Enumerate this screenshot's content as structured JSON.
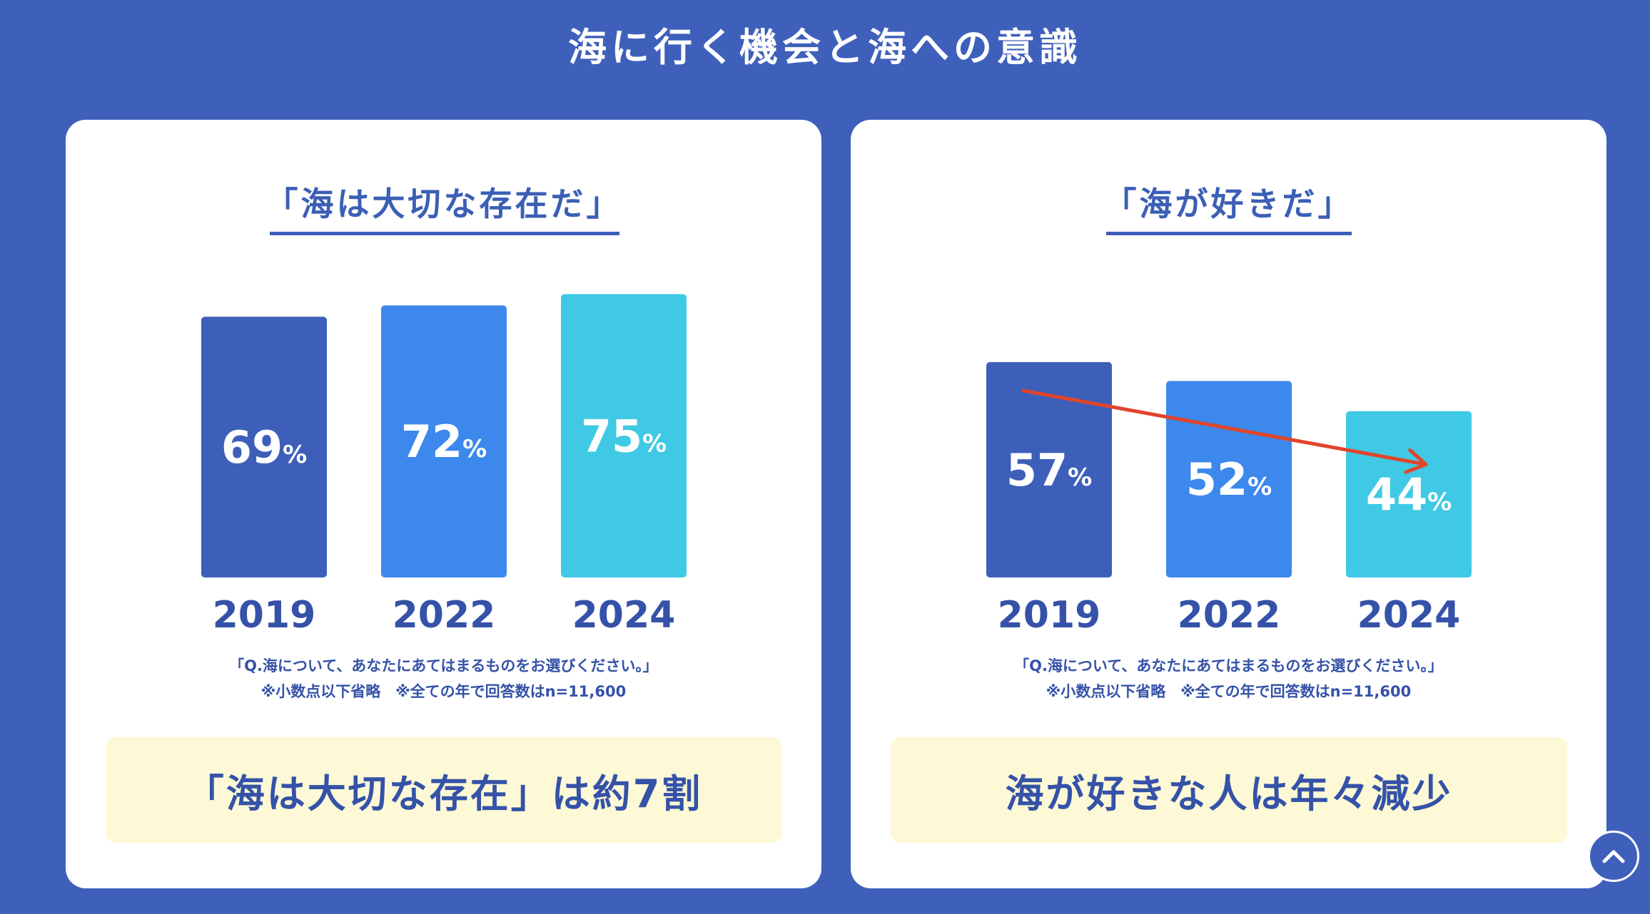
{
  "page_title": "海に行く機会と海への意識",
  "colors": {
    "year2019": "#3d5fba",
    "year2022": "#3d88ec",
    "year2024": "#40c9e4",
    "trend_arrow": "#e0452b",
    "summary_bg": "#fdf9d6"
  },
  "chart_data": [
    {
      "type": "bar",
      "title": "「海は大切な存在だ」",
      "categories": [
        "2019",
        "2022",
        "2024"
      ],
      "values": [
        69,
        72,
        75
      ],
      "unit": "%",
      "note_question": "「Q.海について、あなたにあてはまるものをお選びください。」",
      "note_sample": "※小数点以下省略　※全ての年で回答数はn=11,600",
      "summary": "「海は大切な存在」は約7割",
      "trend_arrow": false
    },
    {
      "type": "bar",
      "title": "「海が好きだ」",
      "categories": [
        "2019",
        "2022",
        "2024"
      ],
      "values": [
        57,
        52,
        44
      ],
      "unit": "%",
      "note_question": "「Q.海について、あなたにあてはまるものをお選びください。」",
      "note_sample": "※小数点以下省略　※全ての年で回答数はn=11,600",
      "summary": "海が好きな人は年々減少",
      "trend_arrow": true
    }
  ],
  "scroll_top_icon": "chevron-up-icon"
}
